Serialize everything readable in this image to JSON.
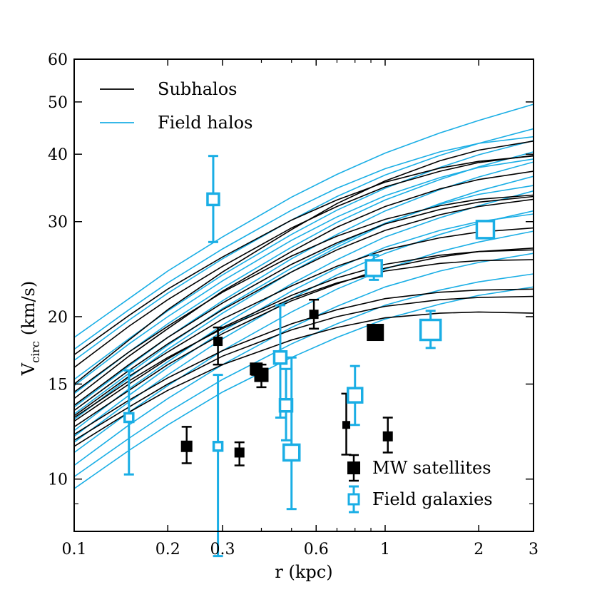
{
  "chart_data": {
    "type": "scatter",
    "xlabel": "r (kpc)",
    "ylabel_main": "V",
    "ylabel_sub": "circ",
    "ylabel_units": "(km/s)",
    "xscale": "log",
    "yscale": "log",
    "xlim": [
      0.1,
      3
    ],
    "ylim": [
      8,
      60
    ],
    "x_ticks": [
      {
        "value": 0.1,
        "label": "0.1"
      },
      {
        "value": 0.2,
        "label": "0.2"
      },
      {
        "value": 0.3,
        "label": "0.3"
      },
      {
        "value": 0.6,
        "label": "0.6"
      },
      {
        "value": 1,
        "label": "1"
      },
      {
        "value": 2,
        "label": "2"
      },
      {
        "value": 3,
        "label": "3"
      }
    ],
    "y_ticks": [
      {
        "value": 10,
        "label": "10"
      },
      {
        "value": 15,
        "label": "15"
      },
      {
        "value": 20,
        "label": "20"
      },
      {
        "value": 30,
        "label": "30"
      },
      {
        "value": 40,
        "label": "40"
      },
      {
        "value": 50,
        "label": "50"
      },
      {
        "value": 60,
        "label": "60"
      }
    ],
    "colors": {
      "subhalo": "#000000",
      "field": "#1aaee5"
    },
    "legend_lines": [
      {
        "label": "Subhalos",
        "color": "#000000"
      },
      {
        "label": "Field halos",
        "color": "#1aaee5"
      }
    ],
    "legend_markers": [
      {
        "label": "MW satellites",
        "color": "#000000",
        "filled": true
      },
      {
        "label": "Field galaxies",
        "color": "#1aaee5",
        "filled": false
      }
    ],
    "curve_x": [
      0.1,
      0.15,
      0.2,
      0.3,
      0.5,
      0.7,
      1,
      1.5,
      2,
      3
    ],
    "subhalos": [
      [
        16.1,
        19.2,
        21.5,
        24.8,
        29.2,
        32.0,
        34.8,
        37.2,
        38.6,
        39.8
      ],
      [
        13.4,
        15.9,
        17.8,
        20.6,
        24.2,
        26.6,
        28.9,
        30.9,
        32.0,
        33.0
      ],
      [
        12.5,
        14.6,
        16.3,
        18.6,
        21.4,
        23.0,
        24.6,
        25.8,
        26.4,
        26.8
      ],
      [
        11.8,
        13.6,
        15.0,
        16.9,
        18.9,
        20.0,
        20.9,
        21.5,
        21.7,
        21.8
      ],
      [
        15.0,
        18.1,
        20.6,
        24.2,
        29.0,
        32.4,
        35.7,
        38.9,
        40.7,
        42.3
      ],
      [
        14.1,
        16.9,
        19.0,
        22.3,
        26.4,
        29.3,
        32.0,
        34.5,
        35.9,
        37.2
      ],
      [
        13.1,
        15.5,
        17.2,
        19.8,
        22.8,
        24.8,
        26.6,
        28.0,
        28.7,
        29.2
      ],
      [
        12.1,
        14.0,
        15.4,
        17.3,
        19.4,
        20.6,
        21.6,
        22.2,
        22.4,
        22.5
      ],
      [
        13.7,
        16.3,
        18.3,
        21.2,
        25.0,
        27.4,
        29.7,
        31.6,
        32.6,
        33.4
      ],
      [
        12.8,
        15.0,
        16.7,
        19.1,
        21.9,
        23.6,
        25.0,
        26.0,
        26.4,
        26.6
      ],
      [
        11.5,
        13.3,
        14.6,
        16.3,
        18.1,
        19.1,
        19.9,
        20.3,
        20.4,
        20.3
      ],
      [
        17.0,
        20.1,
        22.5,
        25.8,
        30.2,
        32.9,
        35.5,
        37.7,
        38.8,
        39.7
      ],
      [
        14.5,
        17.2,
        19.2,
        22.2,
        25.9,
        28.2,
        30.3,
        32.1,
        33.0,
        33.6
      ],
      [
        13.0,
        15.2,
        16.8,
        19.0,
        21.6,
        23.1,
        24.3,
        25.1,
        25.4,
        25.5
      ]
    ],
    "field_halos": [
      [
        18.3,
        21.6,
        24.3,
        28.1,
        33.3,
        36.7,
        40.2,
        43.8,
        46.2,
        49.5
      ],
      [
        16.6,
        19.7,
        22.1,
        25.6,
        30.2,
        33.4,
        36.6,
        39.8,
        41.9,
        44.6
      ],
      [
        15.3,
        18.2,
        20.5,
        23.9,
        28.4,
        31.5,
        34.6,
        37.8,
        39.9,
        42.4
      ],
      [
        14.4,
        17.2,
        19.4,
        22.6,
        26.9,
        29.9,
        32.9,
        35.9,
        37.9,
        40.4
      ],
      [
        13.6,
        16.2,
        18.3,
        21.4,
        25.6,
        28.4,
        31.4,
        34.4,
        36.3,
        38.7
      ],
      [
        12.9,
        15.4,
        17.4,
        20.3,
        24.2,
        26.9,
        29.7,
        32.4,
        34.2,
        36.4
      ],
      [
        12.3,
        14.7,
        16.5,
        19.3,
        23.0,
        25.5,
        28.1,
        30.5,
        32.1,
        34.2
      ],
      [
        11.7,
        13.9,
        15.6,
        18.2,
        21.6,
        23.9,
        26.2,
        28.4,
        29.8,
        31.4
      ],
      [
        11.2,
        13.3,
        14.9,
        17.3,
        20.4,
        22.5,
        24.5,
        26.4,
        27.5,
        28.8
      ],
      [
        10.6,
        12.6,
        14.1,
        16.3,
        19.1,
        20.9,
        22.7,
        24.3,
        25.2,
        26.2
      ],
      [
        10.1,
        11.9,
        13.3,
        15.3,
        17.8,
        19.4,
        21.0,
        22.4,
        23.2,
        24.0
      ],
      [
        9.6,
        11.3,
        12.6,
        14.5,
        16.8,
        18.3,
        19.8,
        21.1,
        21.9,
        22.7
      ],
      [
        17.4,
        20.6,
        23.1,
        26.7,
        31.5,
        34.6,
        37.6,
        40.4,
        41.9,
        43.1
      ],
      [
        14.9,
        17.8,
        20.0,
        23.3,
        27.7,
        30.6,
        33.5,
        36.2,
        37.8,
        39.2
      ],
      [
        13.2,
        15.7,
        17.7,
        20.7,
        24.6,
        27.2,
        29.8,
        32.3,
        33.7,
        35.0
      ],
      [
        12.0,
        14.3,
        16.1,
        18.8,
        22.3,
        24.6,
        26.9,
        28.9,
        30.0,
        31.0
      ]
    ],
    "mw_satellites": [
      {
        "x": 0.23,
        "y": 11.5,
        "ylo": 10.7,
        "yhi": 12.5,
        "size": 16
      },
      {
        "x": 0.29,
        "y": 18.0,
        "ylo": 16.3,
        "yhi": 19.1,
        "size": 13
      },
      {
        "x": 0.34,
        "y": 11.2,
        "ylo": 10.6,
        "yhi": 11.7,
        "size": 14
      },
      {
        "x": 0.385,
        "y": 16.0,
        "ylo": 15.6,
        "yhi": 16.3,
        "size": 18
      },
      {
        "x": 0.4,
        "y": 15.6,
        "ylo": 14.8,
        "yhi": 16.3,
        "size": 20
      },
      {
        "x": 0.59,
        "y": 20.2,
        "ylo": 19.0,
        "yhi": 21.5,
        "size": 13
      },
      {
        "x": 0.75,
        "y": 12.6,
        "ylo": 11.1,
        "yhi": 14.4,
        "size": 11
      },
      {
        "x": 0.93,
        "y": 18.7,
        "ylo": 18.4,
        "yhi": 19.0,
        "size": 24
      },
      {
        "x": 1.02,
        "y": 12.0,
        "ylo": 11.2,
        "yhi": 13.0,
        "size": 14
      }
    ],
    "field_galaxies": [
      {
        "x": 0.15,
        "y": 13.0,
        "ylo": 10.2,
        "yhi": 15.9,
        "size": 12
      },
      {
        "x": 0.28,
        "y": 33.0,
        "ylo": 27.5,
        "yhi": 39.7,
        "size": 16
      },
      {
        "x": 0.29,
        "y": 11.5,
        "ylo": 7.2,
        "yhi": 15.6,
        "size": 12
      },
      {
        "x": 0.46,
        "y": 16.8,
        "ylo": 13.0,
        "yhi": 21.0,
        "size": 17
      },
      {
        "x": 0.48,
        "y": 13.7,
        "ylo": 11.8,
        "yhi": 16.0,
        "size": 17
      },
      {
        "x": 0.5,
        "y": 11.2,
        "ylo": 8.8,
        "yhi": 16.8,
        "size": 22
      },
      {
        "x": 0.8,
        "y": 14.3,
        "ylo": 12.6,
        "yhi": 16.2,
        "size": 20
      },
      {
        "x": 0.92,
        "y": 24.6,
        "ylo": 23.4,
        "yhi": 26.0,
        "size": 22
      },
      {
        "x": 1.4,
        "y": 18.9,
        "ylo": 17.5,
        "yhi": 20.5,
        "size": 28
      },
      {
        "x": 2.1,
        "y": 29.0,
        "ylo": 28.3,
        "yhi": 29.8,
        "size": 24
      }
    ]
  }
}
